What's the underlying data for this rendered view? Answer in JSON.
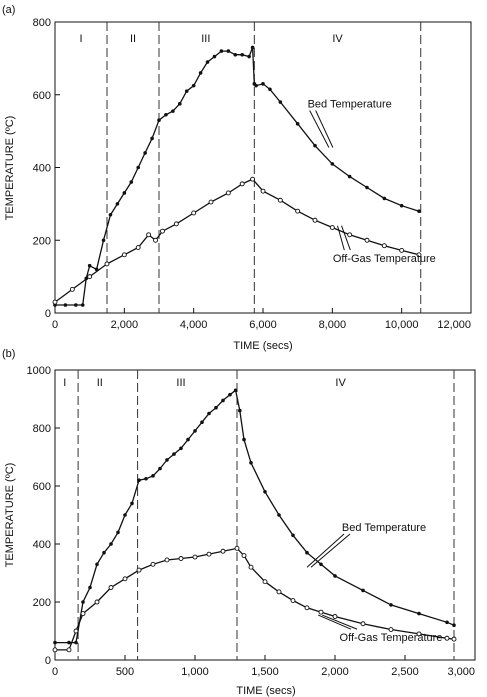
{
  "chart_data": [
    {
      "type": "line",
      "panel_label": "(a)",
      "xlabel": "TIME (secs)",
      "ylabel": "TEMPERATURE (ºC)",
      "xlim": [
        0,
        12000
      ],
      "ylim": [
        0,
        800
      ],
      "xticks": [
        0,
        2000,
        4000,
        6000,
        8000,
        10000,
        12000
      ],
      "xtick_labels": [
        "0",
        "2,000",
        "4,000",
        "6,000",
        "8,000",
        "10,000",
        "12,000"
      ],
      "yticks": [
        0,
        200,
        400,
        600,
        800
      ],
      "ytick_labels": [
        "0",
        "200",
        "400",
        "600",
        "800"
      ],
      "grid": false,
      "phase_boundaries": [
        1500,
        3000,
        5750,
        10550
      ],
      "phases": [
        {
          "label": "I",
          "x": 750
        },
        {
          "label": "II",
          "x": 2250
        },
        {
          "label": "III",
          "x": 4350
        },
        {
          "label": "IV",
          "x": 8150
        }
      ],
      "series": [
        {
          "name": "Bed Temperature",
          "marker": "filled",
          "color": "#111111",
          "x": [
            0,
            300,
            600,
            800,
            900,
            1000,
            1200,
            1400,
            1600,
            1800,
            2000,
            2200,
            2400,
            2600,
            2800,
            3000,
            3200,
            3400,
            3600,
            3800,
            4000,
            4200,
            4400,
            4600,
            4800,
            5000,
            5200,
            5400,
            5600,
            5700,
            5750,
            5800,
            6000,
            6200,
            6500,
            7000,
            7500,
            8000,
            8500,
            9000,
            9500,
            10000,
            10500
          ],
          "y": [
            22,
            22,
            22,
            22,
            95,
            130,
            120,
            200,
            270,
            300,
            330,
            360,
            400,
            440,
            480,
            530,
            545,
            555,
            575,
            610,
            625,
            660,
            690,
            705,
            720,
            720,
            710,
            710,
            705,
            730,
            630,
            625,
            630,
            615,
            580,
            520,
            460,
            410,
            375,
            345,
            315,
            295,
            280
          ]
        },
        {
          "name": "Off-Gas Temperature",
          "marker": "open",
          "color": "#111111",
          "x": [
            0,
            500,
            1000,
            1500,
            2000,
            2400,
            2700,
            2900,
            3100,
            3500,
            4000,
            4500,
            5000,
            5400,
            5700,
            6000,
            6500,
            7000,
            7500,
            8000,
            8500,
            9000,
            9500,
            10000,
            10500
          ],
          "y": [
            30,
            65,
            100,
            135,
            160,
            180,
            215,
            200,
            225,
            245,
            275,
            305,
            330,
            355,
            368,
            335,
            310,
            280,
            255,
            235,
            215,
            200,
            185,
            172,
            160
          ]
        }
      ],
      "annotations": [
        {
          "text": "Bed Temperature",
          "x": 8500,
          "y": 565,
          "arrow_to": [
            7900,
            455
          ]
        },
        {
          "text": "Off-Gas Temperature",
          "x": 9500,
          "y": 140,
          "arrow_to": [
            8150,
            240
          ]
        }
      ]
    },
    {
      "type": "line",
      "panel_label": "(b)",
      "xlabel": "TIME (secs)",
      "ylabel": "TEMPERATURE (ºC)",
      "xlim": [
        0,
        3000
      ],
      "ylim": [
        0,
        1000
      ],
      "xticks": [
        0,
        500,
        1000,
        1500,
        2000,
        2500,
        3000
      ],
      "xtick_labels": [
        "0",
        "500",
        "1,000",
        "1,500",
        "2,000",
        "2,500",
        "3,000"
      ],
      "yticks": [
        0,
        200,
        400,
        600,
        800,
        1000
      ],
      "ytick_labels": [
        "0",
        "200",
        "400",
        "600",
        "800",
        "1000"
      ],
      "grid": false,
      "phase_boundaries": [
        165,
        590,
        1300,
        2850
      ],
      "phases": [
        {
          "label": "I",
          "x": 70
        },
        {
          "label": "II",
          "x": 320
        },
        {
          "label": "III",
          "x": 900
        },
        {
          "label": "IV",
          "x": 2040
        }
      ],
      "series": [
        {
          "name": "Bed Temperature",
          "marker": "filled",
          "color": "#111111",
          "x": [
            0,
            100,
            150,
            200,
            250,
            300,
            350,
            400,
            450,
            500,
            550,
            600,
            650,
            700,
            750,
            800,
            850,
            900,
            950,
            1000,
            1050,
            1100,
            1150,
            1200,
            1250,
            1290,
            1320,
            1350,
            1400,
            1500,
            1600,
            1700,
            1800,
            1900,
            2000,
            2200,
            2400,
            2600,
            2800,
            2850
          ],
          "y": [
            60,
            60,
            60,
            200,
            250,
            330,
            370,
            400,
            440,
            500,
            540,
            620,
            625,
            635,
            660,
            690,
            710,
            730,
            760,
            790,
            820,
            850,
            870,
            895,
            915,
            930,
            860,
            760,
            680,
            580,
            500,
            430,
            370,
            330,
            290,
            240,
            190,
            160,
            130,
            120
          ]
        },
        {
          "name": "Off-Gas Temperature",
          "marker": "open",
          "color": "#111111",
          "x": [
            0,
            100,
            150,
            200,
            300,
            400,
            500,
            600,
            700,
            800,
            900,
            1000,
            1100,
            1200,
            1300,
            1350,
            1400,
            1500,
            1600,
            1700,
            1800,
            1900,
            2000,
            2200,
            2400,
            2600,
            2800,
            2850
          ],
          "y": [
            35,
            35,
            100,
            160,
            200,
            250,
            280,
            310,
            330,
            345,
            350,
            355,
            365,
            375,
            385,
            360,
            320,
            270,
            235,
            205,
            180,
            165,
            150,
            125,
            105,
            90,
            75,
            72
          ]
        }
      ],
      "annotations": [
        {
          "text": "Bed Temperature",
          "x": 2350,
          "y": 445,
          "arrow_to": [
            1800,
            320
          ]
        },
        {
          "text": "Off-Gas Temperature",
          "x": 2400,
          "y": 65,
          "arrow_to": [
            1880,
            155
          ]
        }
      ]
    }
  ]
}
